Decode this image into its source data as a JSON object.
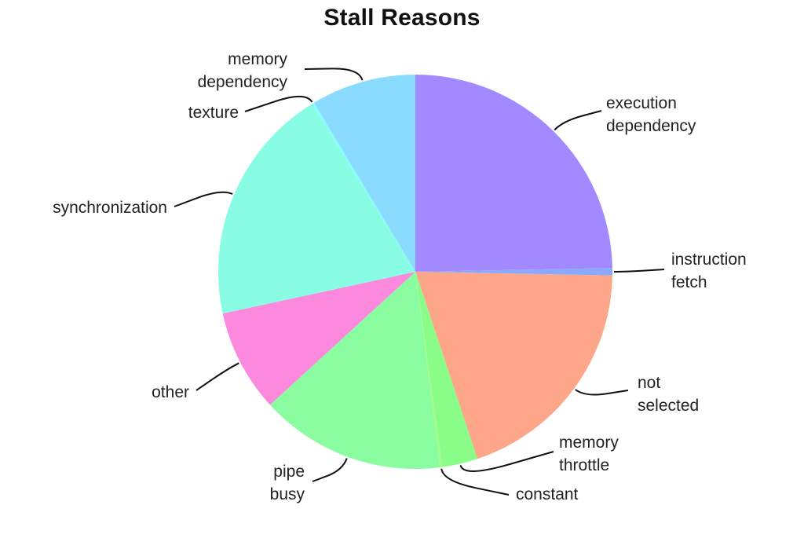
{
  "chart_data": {
    "type": "pie",
    "title": "Stall Reasons",
    "slices": [
      {
        "label": [
          "execution",
          "dependency"
        ],
        "value": 24.7,
        "color": "#a389ff"
      },
      {
        "label": [
          "instruction",
          "fetch"
        ],
        "value": 0.6,
        "color": "#8aaaff"
      },
      {
        "label": [
          "not",
          "selected"
        ],
        "value": 19.6,
        "color": "#fda689"
      },
      {
        "label": [
          "memory",
          "throttle"
        ],
        "value": 2.9,
        "color": "#8afd89"
      },
      {
        "label": [
          "constant"
        ],
        "value": 0.2,
        "color": "#a2fd89"
      },
      {
        "label": [
          "pipe",
          "busy"
        ],
        "value": 15.2,
        "color": "#89fda0"
      },
      {
        "label": [
          "other"
        ],
        "value": 8.4,
        "color": "#fd89de"
      },
      {
        "label": [
          "synchronization"
        ],
        "value": 19.6,
        "color": "#89fde3"
      },
      {
        "label": [
          "texture"
        ],
        "value": 0.2,
        "color": "#89fdfb"
      },
      {
        "label": [
          "memory",
          "dependency"
        ],
        "value": 8.6,
        "color": "#89dcff"
      }
    ],
    "start_angle_deg": 90,
    "direction": "clockwise",
    "legend": "none"
  }
}
